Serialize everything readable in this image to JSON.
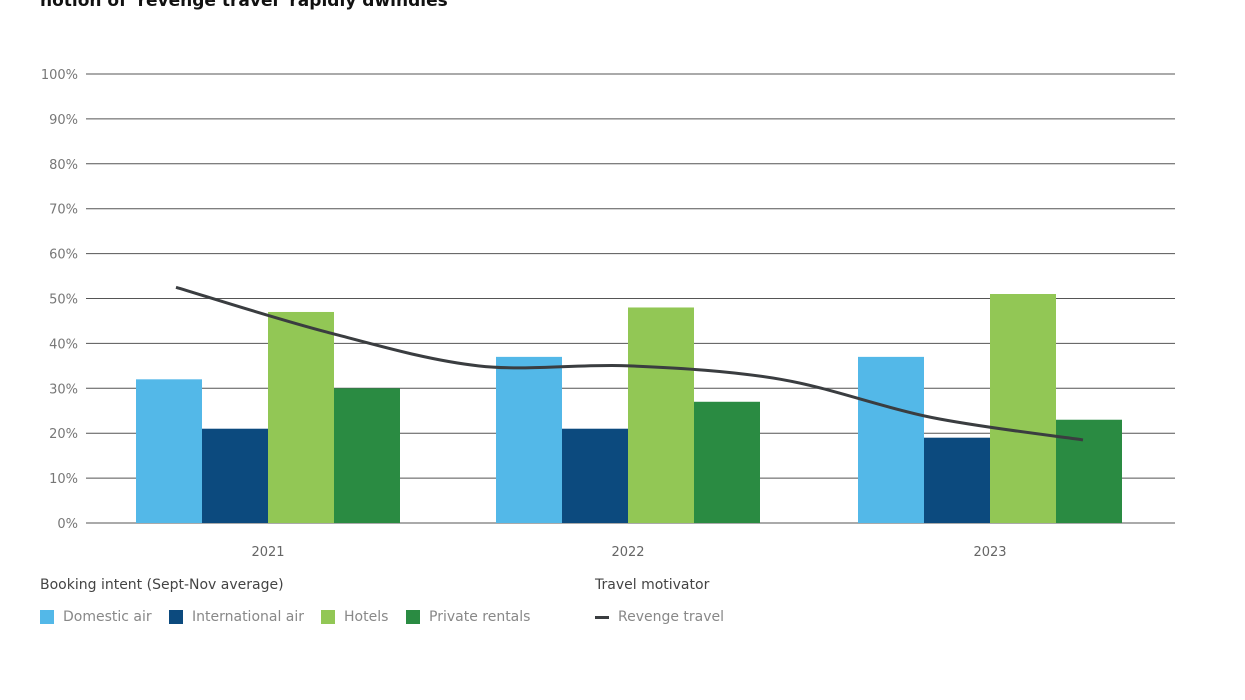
{
  "title": "notion of 'revenge travel' rapidly dwindles",
  "chart_data": {
    "type": "bar",
    "categories": [
      "2021",
      "2022",
      "2023"
    ],
    "ylim": [
      0,
      100
    ],
    "yticks": [
      "0%",
      "10%",
      "20%",
      "30%",
      "40%",
      "50%",
      "60%",
      "70%",
      "80%",
      "90%",
      "100%"
    ],
    "grid": true,
    "series": [
      {
        "name": "Domestic air",
        "values": [
          32,
          37,
          37
        ],
        "color": "#53b8e8"
      },
      {
        "name": "International air",
        "values": [
          21,
          21,
          19
        ],
        "color": "#0c4a7e"
      },
      {
        "name": "Hotels",
        "values": [
          47,
          48,
          51
        ],
        "color": "#92c755"
      },
      {
        "name": "Private rentals",
        "values": [
          30,
          27,
          23
        ],
        "color": "#2a8b42"
      }
    ],
    "line_series": {
      "name": "Revenge travel",
      "type": "line",
      "smooth": true,
      "values": [
        52.5,
        42.5,
        35,
        35,
        32,
        23.5,
        18.5
      ],
      "color": "#3a3d40"
    },
    "legend": {
      "bar_title": "Booking intent (Sept-Nov average)",
      "line_title": "Travel motivator",
      "placement": "bottom"
    }
  }
}
